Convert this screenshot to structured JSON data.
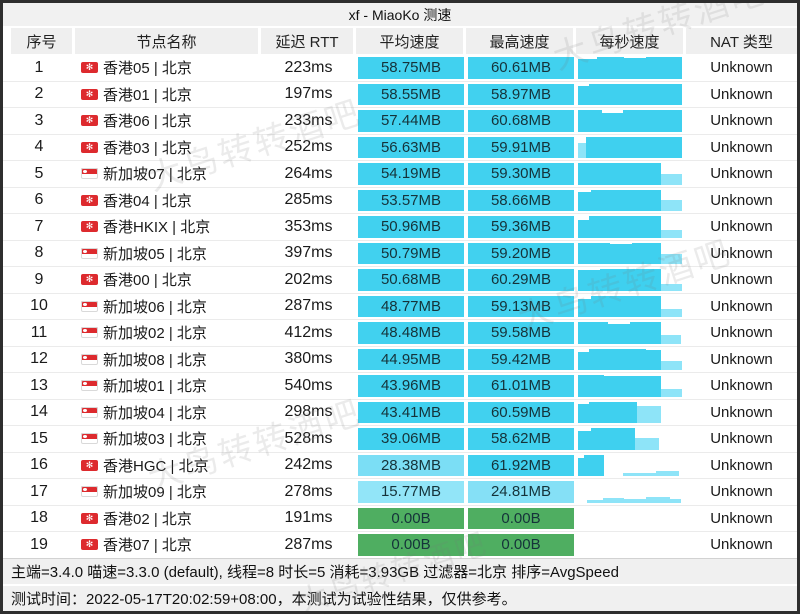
{
  "title": "xf - MiaoKo 测速",
  "watermark": {
    "text": "大鸟转转酒吧"
  },
  "colors": {
    "cell_cyan": "#41d1ef",
    "cell_cyan_light": "#7bdef5",
    "cell_cyan_lighter": "#92e5f8",
    "cell_green": "#4fae61",
    "bar_dark": "#3fd0ef",
    "bar_light": "#8ee4f8"
  },
  "header": {
    "cols": [
      "序号",
      "节点名称",
      "延迟 RTT",
      "平均速度",
      "最高速度",
      "每秒速度",
      "NAT 类型"
    ]
  },
  "rows": [
    {
      "num": "1",
      "flag": "hk",
      "name": "香港05 | 北京",
      "rtt": "223ms",
      "avg": "58.75MB",
      "max": "60.61MB",
      "nat": "Unknown",
      "avg_color": "#41d1ef",
      "max_color": "#41d1ef",
      "bars": [
        [
          0.18,
          0.93,
          "d"
        ],
        [
          0.25,
          1,
          "d"
        ],
        [
          0.2,
          0.95,
          "d"
        ],
        [
          0.33,
          1,
          "d"
        ]
      ]
    },
    {
      "num": "2",
      "flag": "hk",
      "name": "香港01 | 北京",
      "rtt": "197ms",
      "avg": "58.55MB",
      "max": "58.97MB",
      "nat": "Unknown",
      "avg_color": "#41d1ef",
      "max_color": "#41d1ef",
      "bars": [
        [
          0.1,
          0.9,
          "d"
        ],
        [
          0.38,
          1,
          "d"
        ],
        [
          0.48,
          1,
          "d"
        ]
      ]
    },
    {
      "num": "3",
      "flag": "hk",
      "name": "香港06 | 北京",
      "rtt": "233ms",
      "avg": "57.44MB",
      "max": "60.68MB",
      "nat": "Unknown",
      "avg_color": "#41d1ef",
      "max_color": "#41d1ef",
      "bars": [
        [
          0.22,
          1,
          "d"
        ],
        [
          0.2,
          0.87,
          "d"
        ],
        [
          0.54,
          1,
          "d"
        ]
      ]
    },
    {
      "num": "4",
      "flag": "hk",
      "name": "香港03 | 北京",
      "rtt": "252ms",
      "avg": "56.63MB",
      "max": "59.91MB",
      "nat": "Unknown",
      "avg_color": "#41d1ef",
      "max_color": "#41d1ef",
      "bars": [
        [
          0.07,
          0.7,
          "l"
        ],
        [
          0.3,
          1,
          "d"
        ],
        [
          0.59,
          1,
          "d"
        ]
      ]
    },
    {
      "num": "5",
      "flag": "sg",
      "name": "新加坡07 | 北京",
      "rtt": "264ms",
      "avg": "54.19MB",
      "max": "59.30MB",
      "nat": "Unknown",
      "avg_color": "#41d1ef",
      "max_color": "#41d1ef",
      "bars": [
        [
          0.35,
          1,
          "d"
        ],
        [
          0.42,
          1,
          "d"
        ],
        [
          0.19,
          0.48,
          "l"
        ]
      ]
    },
    {
      "num": "6",
      "flag": "hk",
      "name": "香港04 | 北京",
      "rtt": "285ms",
      "avg": "53.57MB",
      "max": "58.66MB",
      "nat": "Unknown",
      "avg_color": "#41d1ef",
      "max_color": "#41d1ef",
      "bars": [
        [
          0.12,
          0.88,
          "d"
        ],
        [
          0.65,
          1,
          "d"
        ],
        [
          0.19,
          0.5,
          "l"
        ]
      ]
    },
    {
      "num": "7",
      "flag": "hk",
      "name": "香港HKIX | 北京",
      "rtt": "353ms",
      "avg": "50.96MB",
      "max": "59.36MB",
      "nat": "Unknown",
      "avg_color": "#41d1ef",
      "max_color": "#41d1ef",
      "bars": [
        [
          0.1,
          0.8,
          "d"
        ],
        [
          0.67,
          1,
          "d"
        ],
        [
          0.19,
          0.33,
          "l"
        ]
      ]
    },
    {
      "num": "8",
      "flag": "sg",
      "name": "新加坡05 | 北京",
      "rtt": "397ms",
      "avg": "50.79MB",
      "max": "59.20MB",
      "nat": "Unknown",
      "avg_color": "#41d1ef",
      "max_color": "#41d1ef",
      "bars": [
        [
          0.3,
          1,
          "d"
        ],
        [
          0.2,
          0.92,
          "d"
        ],
        [
          0.27,
          1,
          "d"
        ],
        [
          0.19,
          0.45,
          "l"
        ]
      ]
    },
    {
      "num": "9",
      "flag": "hk",
      "name": "香港00 | 北京",
      "rtt": "202ms",
      "avg": "50.68MB",
      "max": "60.29MB",
      "nat": "Unknown",
      "avg_color": "#41d1ef",
      "max_color": "#41d1ef",
      "bars": [
        [
          0.2,
          0.95,
          "d"
        ],
        [
          0.57,
          1,
          "d"
        ],
        [
          0.19,
          0.3,
          "l"
        ]
      ]
    },
    {
      "num": "10",
      "flag": "sg",
      "name": "新加坡06 | 北京",
      "rtt": "287ms",
      "avg": "48.77MB",
      "max": "59.13MB",
      "nat": "Unknown",
      "avg_color": "#41d1ef",
      "max_color": "#41d1ef",
      "bars": [
        [
          0.12,
          0.85,
          "d"
        ],
        [
          0.65,
          1,
          "d"
        ],
        [
          0.19,
          0.35,
          "l"
        ]
      ]
    },
    {
      "num": "11",
      "flag": "sg",
      "name": "新加坡02 | 北京",
      "rtt": "412ms",
      "avg": "48.48MB",
      "max": "59.58MB",
      "nat": "Unknown",
      "avg_color": "#41d1ef",
      "max_color": "#41d1ef",
      "bars": [
        [
          0.28,
          1,
          "d"
        ],
        [
          0.2,
          0.9,
          "d"
        ],
        [
          0.29,
          1,
          "d"
        ],
        [
          0.18,
          0.4,
          "l"
        ]
      ]
    },
    {
      "num": "12",
      "flag": "sg",
      "name": "新加坡08 | 北京",
      "rtt": "380ms",
      "avg": "44.95MB",
      "max": "59.42MB",
      "nat": "Unknown",
      "avg_color": "#41d1ef",
      "max_color": "#41d1ef",
      "bars": [
        [
          0.1,
          0.82,
          "d"
        ],
        [
          0.53,
          1,
          "d"
        ],
        [
          0.14,
          0.95,
          "d"
        ],
        [
          0.19,
          0.42,
          "l"
        ]
      ]
    },
    {
      "num": "13",
      "flag": "sg",
      "name": "新加坡01 | 北京",
      "rtt": "540ms",
      "avg": "43.96MB",
      "max": "61.01MB",
      "nat": "Unknown",
      "avg_color": "#41d1ef",
      "max_color": "#41d1ef",
      "bars": [
        [
          0.24,
          1,
          "d"
        ],
        [
          0.53,
          0.97,
          "d"
        ],
        [
          0.19,
          0.35,
          "l"
        ]
      ]
    },
    {
      "num": "14",
      "flag": "sg",
      "name": "新加坡04 | 北京",
      "rtt": "298ms",
      "avg": "43.41MB",
      "max": "60.59MB",
      "nat": "Unknown",
      "avg_color": "#41d1ef",
      "max_color": "#41d1ef",
      "bars": [
        [
          0.1,
          0.88,
          "d"
        ],
        [
          0.45,
          1,
          "d"
        ],
        [
          0.22,
          0.78,
          "l"
        ]
      ]
    },
    {
      "num": "15",
      "flag": "sg",
      "name": "新加坡03 | 北京",
      "rtt": "528ms",
      "avg": "39.06MB",
      "max": "58.62MB",
      "nat": "Unknown",
      "avg_color": "#41d1ef",
      "max_color": "#41d1ef",
      "bars": [
        [
          0.12,
          0.85,
          "d"
        ],
        [
          0.41,
          1,
          "d"
        ],
        [
          0.22,
          0.52,
          "l"
        ]
      ]
    },
    {
      "num": "16",
      "flag": "hk",
      "name": "香港HGC | 北京",
      "rtt": "242ms",
      "avg": "28.38MB",
      "max": "61.92MB",
      "nat": "Unknown",
      "avg_color": "#7bdef5",
      "max_color": "#41d1ef",
      "bars": [
        [
          0.06,
          0.85,
          "d"
        ],
        [
          0.18,
          1,
          "d"
        ],
        [
          0.18,
          0,
          "n"
        ],
        [
          0.3,
          0.15,
          "l"
        ],
        [
          0.22,
          0.22,
          "l"
        ]
      ]
    },
    {
      "num": "17",
      "flag": "sg",
      "name": "新加坡09 | 北京",
      "rtt": "278ms",
      "avg": "15.77MB",
      "max": "24.81MB",
      "nat": "Unknown",
      "avg_color": "#92e5f8",
      "max_color": "#85e0f6",
      "bars": [
        [
          0.08,
          0,
          "n"
        ],
        [
          0.15,
          0.12,
          "l"
        ],
        [
          0.2,
          0.22,
          "l"
        ],
        [
          0.2,
          0.16,
          "l"
        ],
        [
          0.22,
          0.25,
          "l"
        ],
        [
          0.1,
          0.18,
          "l"
        ]
      ]
    },
    {
      "num": "18",
      "flag": "hk",
      "name": "香港02 | 北京",
      "rtt": "191ms",
      "avg": "0.00B",
      "max": "0.00B",
      "nat": "Unknown",
      "avg_color": "#4fae61",
      "max_color": "#4fae61",
      "bars": []
    },
    {
      "num": "19",
      "flag": "hk",
      "name": "香港07 | 北京",
      "rtt": "287ms",
      "avg": "0.00B",
      "max": "0.00B",
      "nat": "Unknown",
      "avg_color": "#4fae61",
      "max_color": "#4fae61",
      "bars": []
    }
  ],
  "footer": {
    "line1": "主端=3.4.0 喵速=3.3.0 (default), 线程=8 时长=5 消耗=3.93GB 过滤器=北京 排序=AvgSpeed",
    "line2": "测试时间：2022-05-17T20:02:59+08:00，本测试为试验性结果，仅供参考。"
  }
}
